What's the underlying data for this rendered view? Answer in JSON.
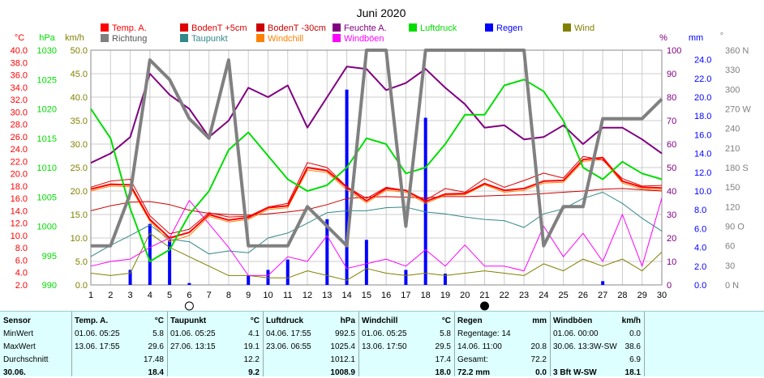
{
  "chart_data": {
    "type": "line",
    "title": "Juni 2020",
    "days": [
      1,
      2,
      3,
      4,
      5,
      6,
      7,
      8,
      9,
      10,
      11,
      12,
      13,
      14,
      15,
      16,
      17,
      18,
      19,
      20,
      21,
      22,
      23,
      24,
      25,
      26,
      27,
      28,
      29,
      30
    ],
    "x_ticks": [
      "1",
      "2",
      "3",
      "4",
      "5",
      "6",
      "7",
      "8",
      "9",
      "10",
      "11",
      "12",
      "13",
      "14",
      "15",
      "16",
      "17",
      "18",
      "19",
      "20",
      "21",
      "22",
      "23",
      "24",
      "25",
      "26",
      "27",
      "28",
      "29",
      "30"
    ],
    "legend": [
      {
        "label": "Temp. A.",
        "color": "#ff0000"
      },
      {
        "label": "BodenT +5cm",
        "color": "#e00000"
      },
      {
        "label": "BodenT -30cm",
        "color": "#cc0000"
      },
      {
        "label": "Feuchte A.",
        "color": "#800080"
      },
      {
        "label": "Luftdruck",
        "color": "#00dd00"
      },
      {
        "label": "Regen",
        "color": "#0000ff"
      },
      {
        "label": "Wind",
        "color": "#808000"
      },
      {
        "label": "Richtung",
        "color": "#808080"
      },
      {
        "label": "Taupunkt",
        "color": "#338888"
      },
      {
        "label": "Windchill",
        "color": "#ff8000"
      },
      {
        "label": "Windböen",
        "color": "#ff00ff"
      }
    ],
    "axes": {
      "temp": {
        "unit": "°C",
        "range": [
          2.0,
          40.0
        ],
        "ticks": [
          "40.0",
          "38.0",
          "36.0",
          "34.0",
          "32.0",
          "30.0",
          "28.0",
          "26.0",
          "24.0",
          "22.0",
          "20.0",
          "18.0",
          "16.0",
          "14.0",
          "12.0",
          "10.0",
          "8.0",
          "6.0",
          "4.0",
          "2.0"
        ],
        "color": "#ff0000"
      },
      "pressure": {
        "unit": "hPa",
        "range": [
          990,
          1030
        ],
        "ticks": [
          "1030",
          "1025",
          "1020",
          "1015",
          "1010",
          "1005",
          "1000",
          "995",
          "990"
        ],
        "color": "#00dd00"
      },
      "wind": {
        "unit": "km/h",
        "range": [
          0,
          50
        ],
        "ticks": [
          "50.0",
          "45.0",
          "40.0",
          "35.0",
          "30.0",
          "25.0",
          "20.0",
          "15.0",
          "10.0",
          "5.0",
          "0.0"
        ],
        "color": "#808000"
      },
      "humidity": {
        "unit": "%",
        "range": [
          0,
          100
        ],
        "ticks": [
          "100",
          "90",
          "80",
          "70",
          "60",
          "50",
          "40",
          "30",
          "20",
          "10",
          "0"
        ],
        "color": "#800080"
      },
      "rain": {
        "unit": "mm",
        "range": [
          0,
          25
        ],
        "ticks": [
          "24.0",
          "22.0",
          "20.0",
          "18.0",
          "16.0",
          "14.0",
          "12.0",
          "10.0",
          "8.0",
          "6.0",
          "4.0",
          "2.0",
          "0.0"
        ],
        "color": "#0000ff"
      },
      "direction": {
        "unit": "°",
        "range": [
          0,
          360
        ],
        "ticks": [
          "360 N",
          "330",
          "300",
          "270 W",
          "240",
          "210",
          "180 S",
          "150",
          "120",
          "90 O",
          "60",
          "30",
          "0 N"
        ],
        "color": "#808080"
      }
    },
    "series": [
      {
        "name": "Feuchte A.",
        "axis": "humidity",
        "color": "#800080",
        "values": [
          52,
          56,
          63,
          90,
          81,
          75,
          63,
          70,
          84,
          80,
          85,
          67,
          80,
          93,
          92,
          83,
          86,
          92,
          84,
          77,
          67,
          68,
          62,
          63,
          68,
          60,
          67,
          67,
          62,
          56
        ]
      },
      {
        "name": "Luftdruck",
        "axis": "pressure",
        "color": "#00dd00",
        "values": [
          1020,
          1015,
          1003,
          994,
          996,
          1002,
          1006,
          1013,
          1016,
          1012,
          1008,
          1006,
          1007,
          1010,
          1015,
          1014,
          1009,
          1010,
          1014,
          1019,
          1019,
          1024,
          1025,
          1023,
          1018,
          1010,
          1008,
          1011,
          1009,
          1008
        ]
      },
      {
        "name": "Richtung",
        "axis": "direction",
        "color": "#808080",
        "values": [
          60,
          60,
          140,
          345,
          315,
          255,
          225,
          345,
          60,
          60,
          60,
          120,
          90,
          60,
          420,
          390,
          90,
          360,
          435,
          405,
          465,
          435,
          435,
          60,
          120,
          120,
          255,
          255,
          255,
          285
        ]
      },
      {
        "name": "Temp. A.",
        "axis": "temp",
        "color": "#ff0000",
        "values": [
          17.5,
          18.3,
          18.2,
          12.6,
          9.6,
          10.5,
          13.4,
          12.5,
          12.9,
          14.5,
          14.8,
          21.0,
          20.5,
          17.8,
          15.6,
          17.6,
          17.3,
          15.5,
          16.7,
          16.8,
          18.4,
          17.3,
          17.6,
          18.8,
          18.9,
          22.3,
          22.6,
          18.8,
          17.8,
          17.7
        ]
      },
      {
        "name": "BodenT +5cm",
        "axis": "temp",
        "color": "#e00000",
        "values": [
          17.8,
          18.8,
          19.1,
          13.2,
          10.3,
          11.0,
          13.7,
          13.0,
          13.1,
          14.6,
          15.2,
          21.8,
          21.0,
          17.9,
          16.0,
          17.8,
          17.3,
          15.7,
          17.6,
          17.0,
          19.2,
          17.8,
          18.9,
          20.1,
          19.3,
          22.8,
          22.2,
          19.2,
          18.0,
          18.1
        ]
      },
      {
        "name": "BodenT -30cm",
        "axis": "temp",
        "color": "#cc0000",
        "values": [
          14.0,
          14.8,
          15.4,
          15.5,
          15.0,
          14.1,
          13.6,
          13.4,
          13.3,
          13.5,
          13.8,
          14.2,
          15.0,
          16.0,
          16.2,
          16.3,
          16.2,
          16.1,
          16.3,
          16.3,
          16.4,
          16.5,
          16.6,
          16.8,
          17.0,
          17.2,
          17.5,
          17.6,
          17.4,
          17.2
        ]
      },
      {
        "name": "Taupunkt",
        "axis": "temp",
        "color": "#338888",
        "values": [
          6.6,
          8.4,
          10.0,
          11.7,
          9.4,
          9.0,
          7.0,
          7.5,
          7.2,
          9.6,
          10.4,
          12.0,
          13.7,
          14.0,
          14.0,
          14.5,
          14.6,
          13.8,
          13.5,
          13.0,
          12.6,
          12.4,
          11.3,
          13.5,
          14.3,
          16.0,
          17.0,
          15.2,
          12.8,
          10.7
        ]
      },
      {
        "name": "Windchill",
        "axis": "temp",
        "color": "#ff8000",
        "values": [
          17.2,
          18.0,
          17.9,
          12.3,
          9.0,
          10.0,
          13.1,
          12.2,
          12.6,
          14.2,
          14.5,
          20.6,
          20.2,
          17.4,
          15.3,
          17.3,
          17.0,
          15.2,
          16.5,
          16.6,
          18.2,
          17.0,
          17.3,
          18.5,
          18.6,
          22.0,
          22.3,
          18.5,
          17.5,
          17.4
        ]
      },
      {
        "name": "Wind",
        "axis": "wind",
        "color": "#808000",
        "values": [
          2.5,
          2.0,
          2.5,
          11.0,
          8.0,
          6.0,
          4.0,
          2.0,
          2.0,
          1.5,
          1.5,
          3.0,
          2.0,
          1.0,
          3.5,
          2.5,
          2.0,
          2.5,
          2.0,
          2.5,
          3.0,
          2.5,
          2.0,
          4.5,
          3.0,
          5.5,
          4.0,
          5.5,
          3.0,
          7.0
        ]
      },
      {
        "name": "Windböen",
        "axis": "wind",
        "color": "#ff00ff",
        "values": [
          4.0,
          5.0,
          5.5,
          8.0,
          10.0,
          18.0,
          13.0,
          8.0,
          2.0,
          2.0,
          6.0,
          5.0,
          10.5,
          3.5,
          4.5,
          5.5,
          4.0,
          7.5,
          4.0,
          8.5,
          4.0,
          4.0,
          3.0,
          12.5,
          6.0,
          11.0,
          5.0,
          15.0,
          4.0,
          18.5
        ]
      },
      {
        "name": "Regen",
        "axis": "rain",
        "color": "#0000ff",
        "type": "bar",
        "values": [
          0,
          0,
          1.6,
          6.5,
          4.8,
          0.2,
          0,
          0,
          1.0,
          1.6,
          2.7,
          0,
          7.0,
          20.8,
          4.8,
          0,
          1.6,
          17.8,
          1.2,
          0,
          0,
          0,
          0,
          0,
          0,
          0,
          0.4,
          0,
          0,
          0
        ]
      }
    ],
    "moon_markers": [
      {
        "day": 6,
        "phase": "full"
      },
      {
        "day": 21,
        "phase": "new"
      }
    ],
    "grid": true
  },
  "stats": {
    "row_labels": [
      "Sensor",
      "MinWert",
      "MaxWert",
      "Durchschnitt",
      "30.06."
    ],
    "columns": [
      {
        "name": "Temp. A.",
        "unit": "°C",
        "min_time": "01.06. 05:25",
        "min": "5.8",
        "max_time": "13.06. 17:55",
        "max": "29.6",
        "avg": "17.48",
        "today": "18.4"
      },
      {
        "name": "Taupunkt",
        "unit": "°C",
        "min_time": "01.06. 05:25",
        "min": "4.1",
        "max_time": "27.06. 13:15",
        "max": "19.1",
        "avg": "12.2",
        "today": "9.2"
      },
      {
        "name": "Luftdruck",
        "unit": "hPa",
        "min_time": "04.06. 17:55",
        "min": "992.5",
        "max_time": "23.06. 06:55",
        "max": "1025.4",
        "avg": "1012.1",
        "today": "1008.9"
      },
      {
        "name": "Windchill",
        "unit": "°C",
        "min_time": "01.06. 05:25",
        "min": "5.8",
        "max_time": "13.06. 17:50",
        "max": "29.5",
        "avg": "17.4",
        "today": "18.0"
      },
      {
        "name": "Regen",
        "unit": "mm",
        "min_time": "Regentage: 14",
        "min": "",
        "max_time": "14.06. 11:00",
        "max": "20.8",
        "avg_label": "Gesamt:",
        "avg": "72.2",
        "today": "72.2 mm",
        "today_extra": "0.0"
      },
      {
        "name": "Windböen",
        "unit": "km/h",
        "min_time": "01.06. 00:00",
        "min": "0.0",
        "max_time": "30.06. 13:3W-SW",
        "max": "38.6",
        "avg": "6.9",
        "today_label": "3 Bft W-SW",
        "today": "18.1"
      }
    ]
  }
}
